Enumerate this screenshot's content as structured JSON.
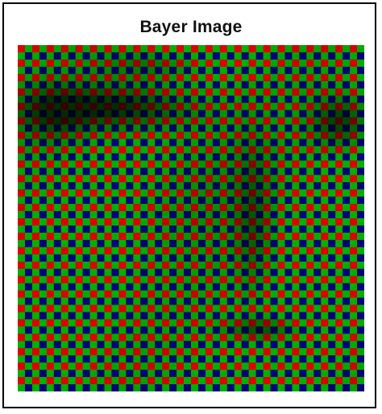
{
  "figure": {
    "title": "Bayer Image"
  },
  "image": {
    "description_name": "bayer-mosaic-face",
    "pattern": "RGGB",
    "grid_cells": 48,
    "colors": {
      "red": "#e00000",
      "green": "#00b000",
      "blue": "#00007a",
      "background": "#ffffff",
      "border": "#000000"
    }
  }
}
